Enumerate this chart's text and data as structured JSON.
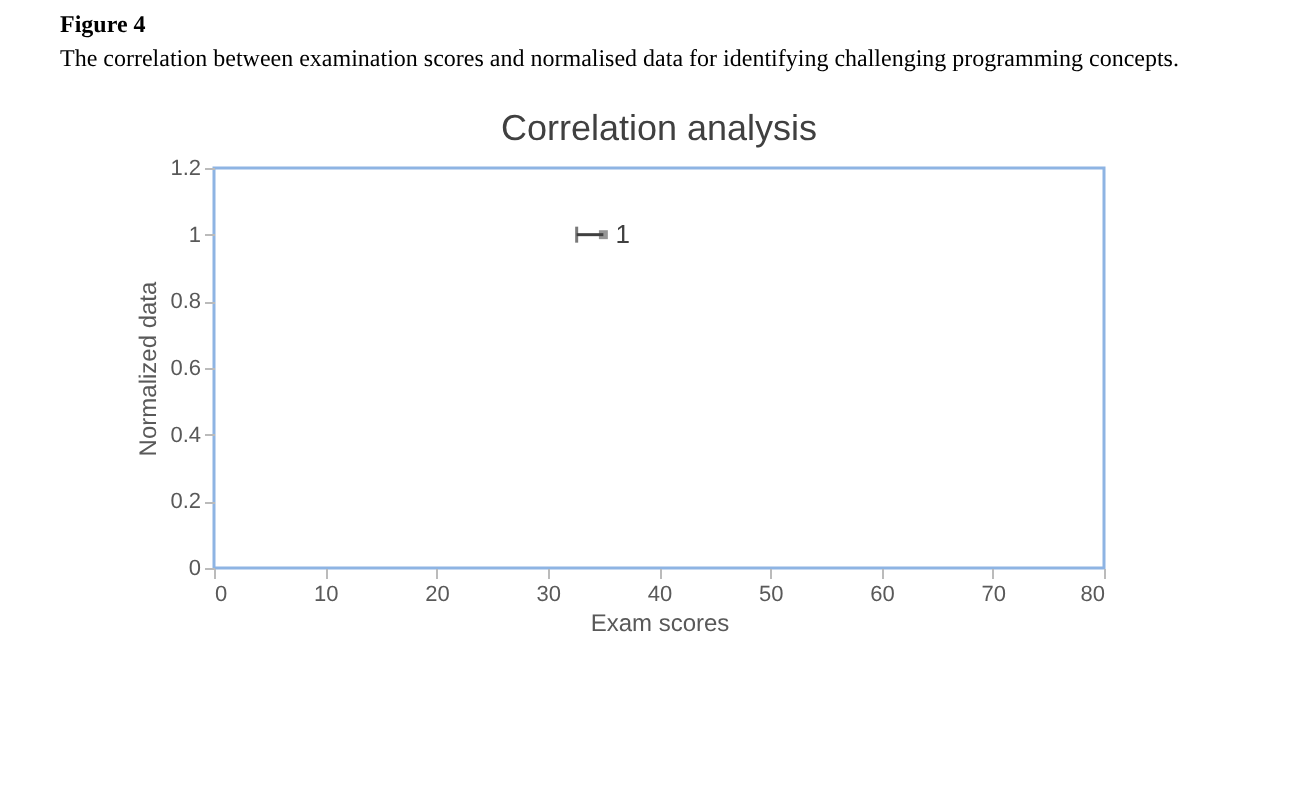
{
  "chart_data": {
    "type": "scatter",
    "title": "Correlation analysis",
    "xlabel": "Exam scores",
    "ylabel": "Normalized data",
    "annotations": [
      "Figure 4",
      "The correlation between examination scores and normalised data for identifying challenging programming concepts."
    ],
    "x": [
      35
    ],
    "values": [
      1
    ],
    "xerrors": [
      [
        32.6,
        35
      ]
    ],
    "color": "#404040",
    "marker": "square",
    "data_labels": true,
    "xlim": [
      0,
      80
    ],
    "xticks": [
      0,
      10,
      20,
      30,
      40,
      50,
      60,
      70,
      80
    ],
    "ylim": [
      0,
      1.2
    ],
    "yticks": [
      0,
      0.2,
      0.4,
      0.6,
      0.8,
      1,
      1.2
    ],
    "grid": false,
    "legend": false
  }
}
